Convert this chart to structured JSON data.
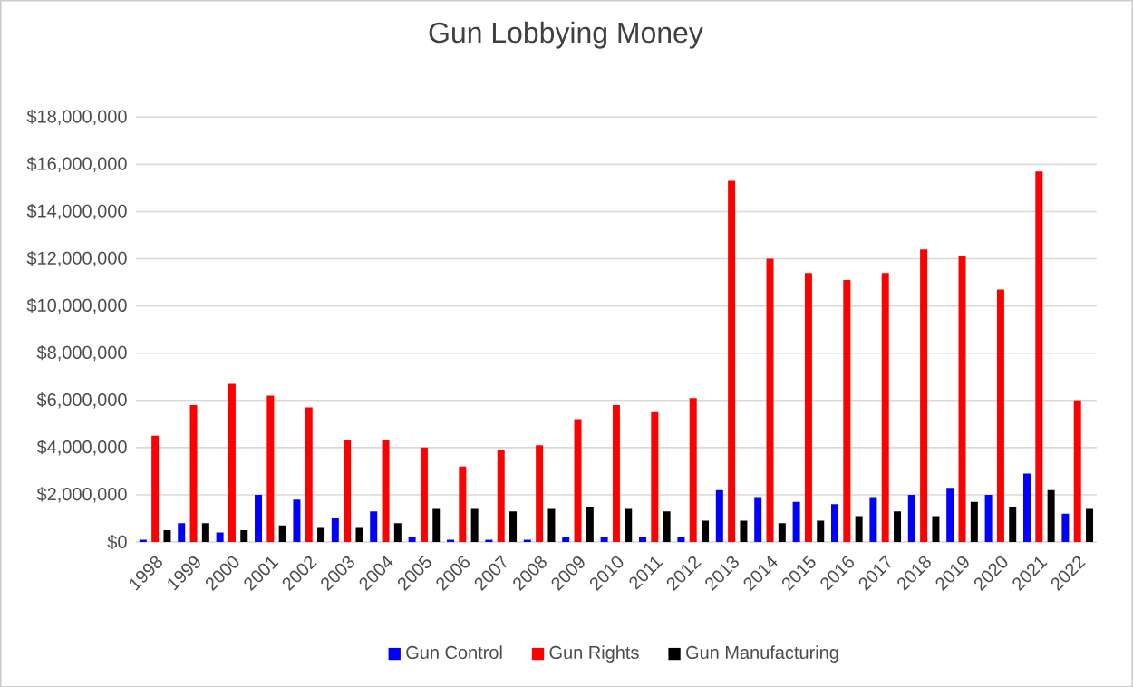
{
  "chart_data": {
    "type": "bar",
    "title": "Gun Lobbying Money",
    "categories": [
      "1998",
      "1999",
      "2000",
      "2001",
      "2002",
      "2003",
      "2004",
      "2005",
      "2006",
      "2007",
      "2008",
      "2009",
      "2010",
      "2011",
      "2012",
      "2013",
      "2014",
      "2015",
      "2016",
      "2017",
      "2018",
      "2019",
      "2020",
      "2021",
      "2022"
    ],
    "series": [
      {
        "name": "Gun Control",
        "color": "#0000ff",
        "values": [
          100000,
          800000,
          400000,
          2000000,
          1800000,
          1000000,
          1300000,
          200000,
          100000,
          100000,
          100000,
          200000,
          200000,
          200000,
          200000,
          2200000,
          1900000,
          1700000,
          1600000,
          1900000,
          2000000,
          2300000,
          2000000,
          2900000,
          1200000
        ]
      },
      {
        "name": "Gun Rights",
        "color": "#ff0000",
        "values": [
          4500000,
          5800000,
          6700000,
          6200000,
          5700000,
          4300000,
          4300000,
          4000000,
          3200000,
          3900000,
          4100000,
          5200000,
          5800000,
          5500000,
          6100000,
          15300000,
          12000000,
          11400000,
          11100000,
          11400000,
          12400000,
          12100000,
          10700000,
          15700000,
          6000000
        ]
      },
      {
        "name": "Gun Manufacturing",
        "color": "#000000",
        "values": [
          500000,
          800000,
          500000,
          700000,
          600000,
          600000,
          800000,
          1400000,
          1400000,
          1300000,
          1400000,
          1500000,
          1400000,
          1300000,
          900000,
          900000,
          800000,
          900000,
          1100000,
          1300000,
          1100000,
          1700000,
          1500000,
          2200000,
          1400000
        ]
      }
    ],
    "ylim": [
      0,
      18000000
    ],
    "yticks": [
      {
        "value": 0,
        "label": "$0"
      },
      {
        "value": 2000000,
        "label": "$2,000,000"
      },
      {
        "value": 4000000,
        "label": "$4,000,000"
      },
      {
        "value": 6000000,
        "label": "$6,000,000"
      },
      {
        "value": 8000000,
        "label": "$8,000,000"
      },
      {
        "value": 10000000,
        "label": "$10,000,000"
      },
      {
        "value": 12000000,
        "label": "$12,000,000"
      },
      {
        "value": 14000000,
        "label": "$14,000,000"
      },
      {
        "value": 16000000,
        "label": "$16,000,000"
      },
      {
        "value": 18000000,
        "label": "$18,000,000"
      }
    ],
    "grid": "y",
    "legend": "bottom"
  }
}
